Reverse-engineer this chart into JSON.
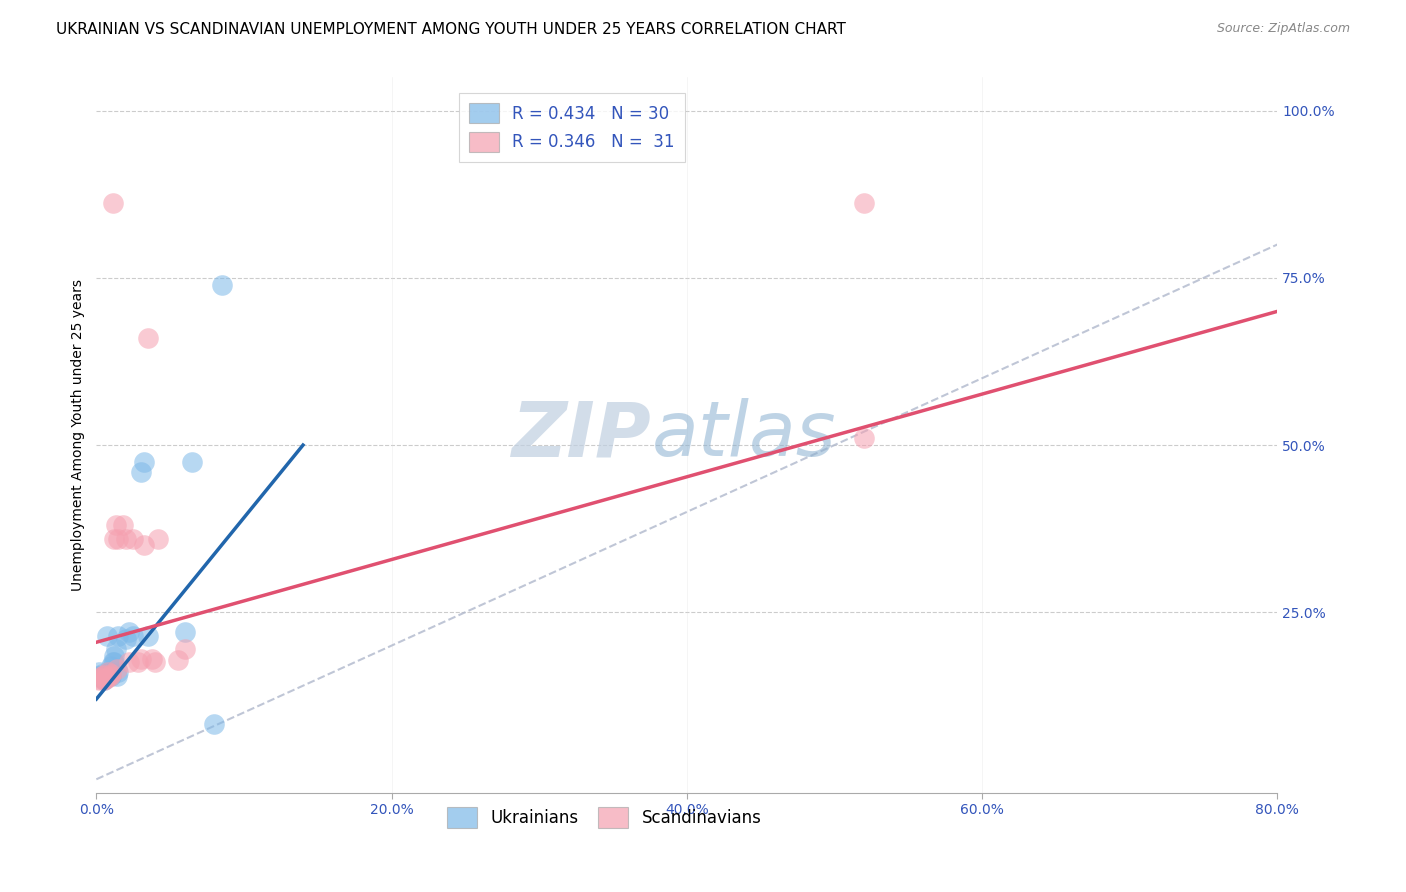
{
  "title": "UKRAINIAN VS SCANDINAVIAN UNEMPLOYMENT AMONG YOUTH UNDER 25 YEARS CORRELATION CHART",
  "source": "Source: ZipAtlas.com",
  "ylabel": "Unemployment Among Youth under 25 years",
  "xlim": [
    0.0,
    0.8
  ],
  "ylim": [
    -0.02,
    1.05
  ],
  "yticks": [
    0.0,
    0.25,
    0.5,
    0.75,
    1.0
  ],
  "xticks": [
    0.0,
    0.2,
    0.4,
    0.6,
    0.8
  ],
  "watermark_zip": "ZIP",
  "watermark_atlas": "atlas",
  "blue_color": "#7db8e8",
  "pink_color": "#f5a0b0",
  "blue_line_color": "#2166ac",
  "pink_line_color": "#e05070",
  "diagonal_color": "#b0b8cc",
  "ukrainians_x": [
    0.001,
    0.002,
    0.003,
    0.004,
    0.005,
    0.005,
    0.006,
    0.007,
    0.007,
    0.008,
    0.009,
    0.01,
    0.01,
    0.011,
    0.012,
    0.012,
    0.013,
    0.014,
    0.015,
    0.015,
    0.02,
    0.022,
    0.025,
    0.03,
    0.032,
    0.035,
    0.06,
    0.065,
    0.08,
    0.085
  ],
  "ukrainians_y": [
    0.155,
    0.16,
    0.155,
    0.158,
    0.148,
    0.152,
    0.155,
    0.158,
    0.215,
    0.155,
    0.16,
    0.155,
    0.17,
    0.175,
    0.185,
    0.175,
    0.195,
    0.155,
    0.16,
    0.215,
    0.21,
    0.22,
    0.215,
    0.46,
    0.475,
    0.215,
    0.22,
    0.475,
    0.082,
    0.74
  ],
  "scandinavians_x": [
    0.001,
    0.002,
    0.003,
    0.004,
    0.005,
    0.005,
    0.006,
    0.007,
    0.008,
    0.009,
    0.01,
    0.011,
    0.012,
    0.013,
    0.014,
    0.015,
    0.018,
    0.02,
    0.022,
    0.025,
    0.028,
    0.03,
    0.032,
    0.035,
    0.038,
    0.04,
    0.042,
    0.055,
    0.06,
    0.52,
    0.52
  ],
  "scandinavians_y": [
    0.15,
    0.148,
    0.152,
    0.155,
    0.148,
    0.156,
    0.15,
    0.152,
    0.16,
    0.155,
    0.158,
    0.862,
    0.36,
    0.38,
    0.165,
    0.36,
    0.38,
    0.36,
    0.175,
    0.36,
    0.175,
    0.18,
    0.35,
    0.66,
    0.18,
    0.175,
    0.36,
    0.178,
    0.195,
    0.51,
    0.862
  ],
  "blue_line_x0": 0.0,
  "blue_line_y0": 0.12,
  "blue_line_x1": 0.14,
  "blue_line_y1": 0.5,
  "pink_line_x0": 0.0,
  "pink_line_y0": 0.205,
  "pink_line_x1": 0.8,
  "pink_line_y1": 0.7,
  "title_fontsize": 11,
  "source_fontsize": 9,
  "axis_label_fontsize": 10,
  "tick_fontsize": 10,
  "legend_fontsize": 12,
  "watermark_fontsize_zip": 55,
  "watermark_fontsize_atlas": 55
}
